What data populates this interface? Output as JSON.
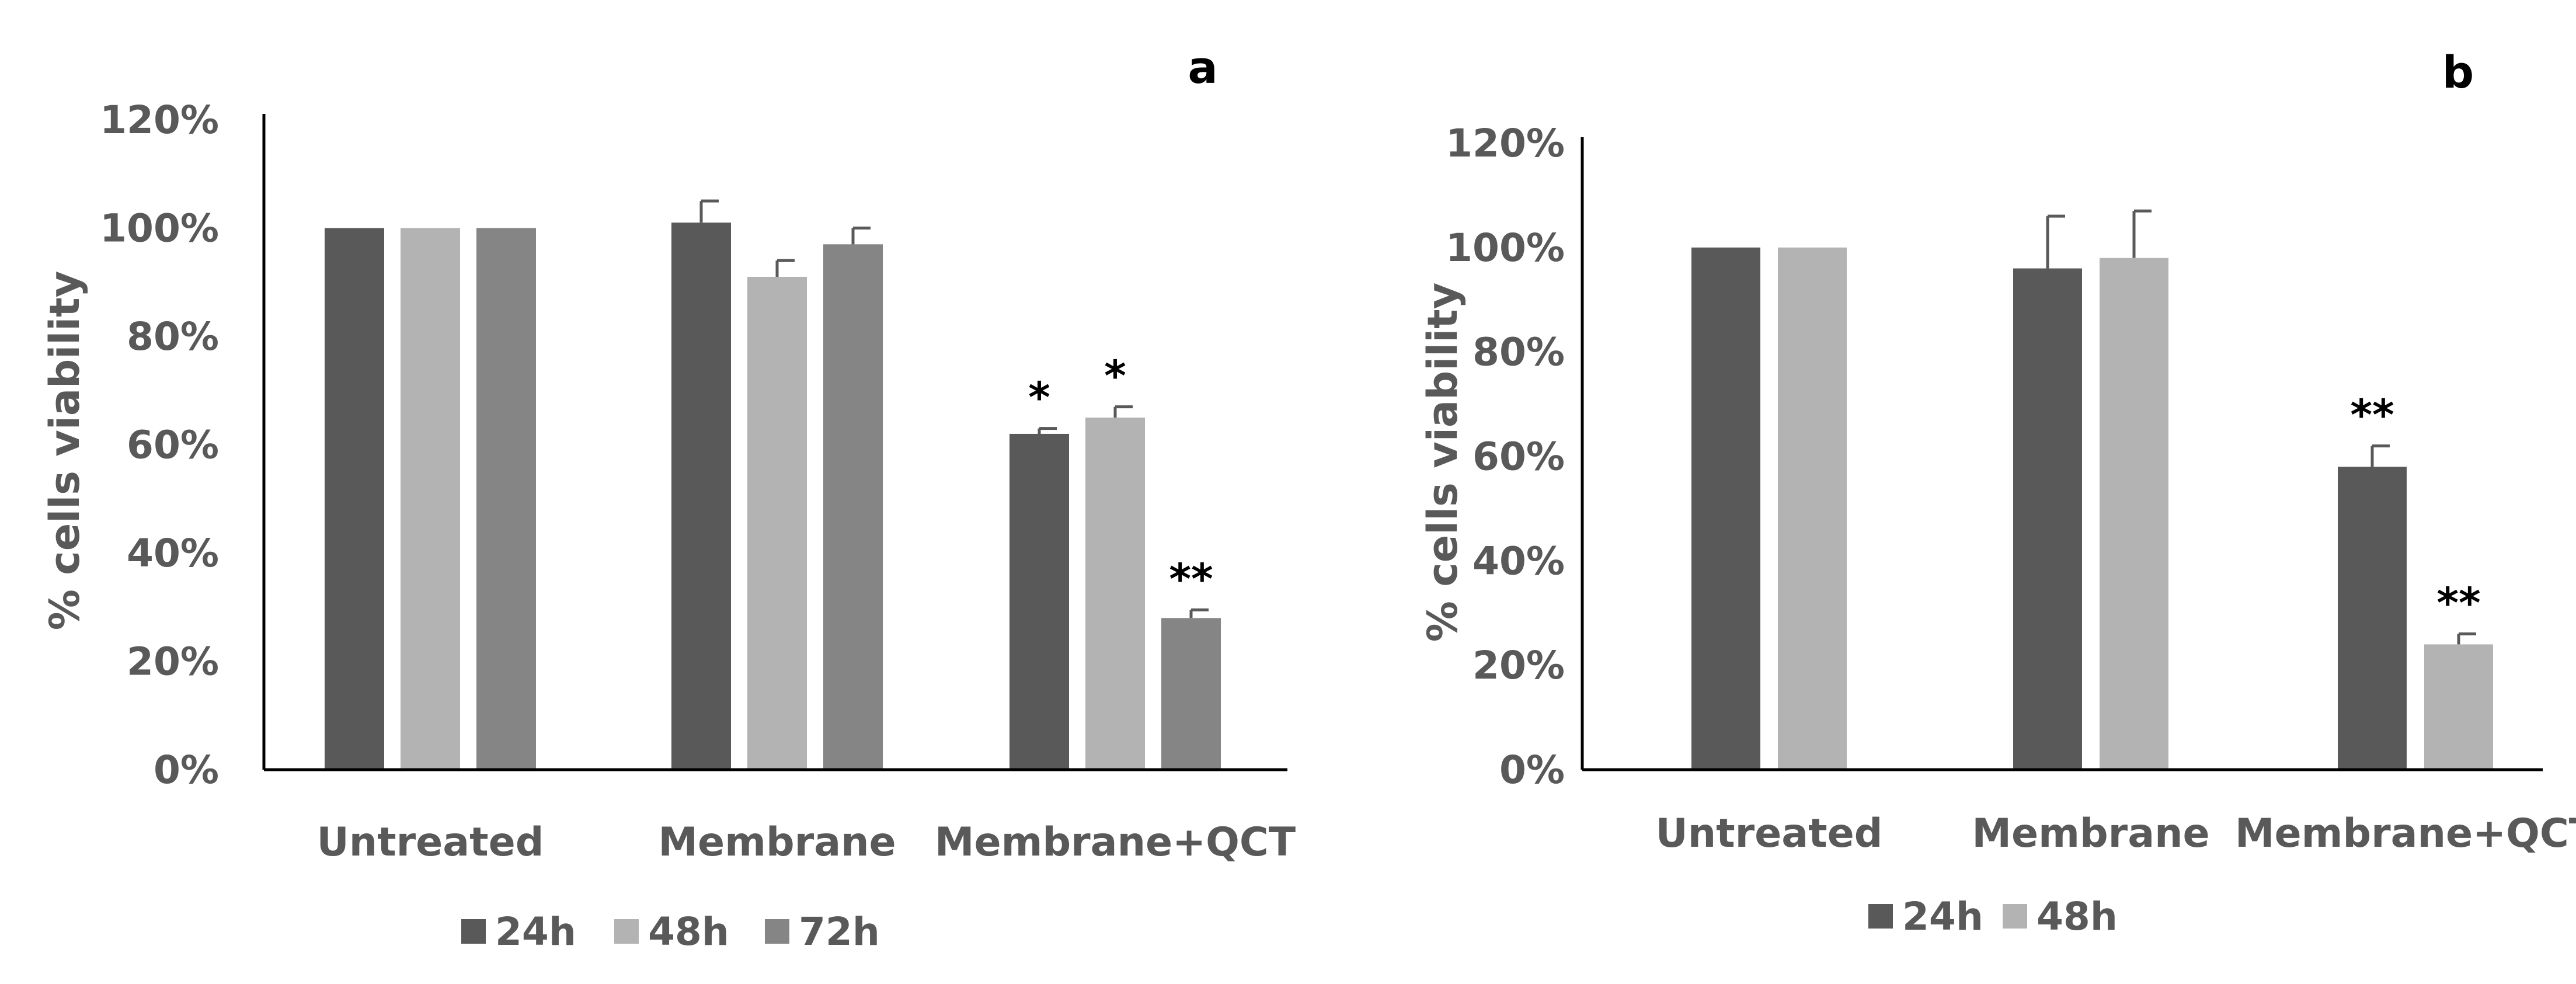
{
  "chart_data": [
    {
      "type": "bar",
      "panel_label": "a",
      "ylabel": "% cells viability",
      "xlabel": "",
      "ylim": [
        0,
        120
      ],
      "y_ticks": [
        "0%",
        "20%",
        "40%",
        "60%",
        "80%",
        "100%",
        "120%"
      ],
      "categories": [
        "Untreated",
        "Membrane",
        "Membrane+QCT"
      ],
      "series": [
        {
          "name": "24h",
          "color": "#595959",
          "values": [
            100,
            101,
            62
          ],
          "errors": [
            0,
            4,
            1
          ],
          "significance": [
            "",
            "",
            "*"
          ]
        },
        {
          "name": "48h",
          "color": "#b3b3b3",
          "values": [
            100,
            91,
            65
          ],
          "errors": [
            0,
            3,
            2
          ],
          "significance": [
            "",
            "",
            "*"
          ]
        },
        {
          "name": "72h",
          "color": "#858585",
          "values": [
            100,
            97,
            28
          ],
          "errors": [
            0,
            3,
            1.5
          ],
          "significance": [
            "",
            "",
            "**"
          ]
        }
      ],
      "legend_position": "bottom"
    },
    {
      "type": "bar",
      "panel_label": "b",
      "ylabel": "% cells viability",
      "xlabel": "",
      "ylim": [
        0,
        120
      ],
      "y_ticks": [
        "0%",
        "20%",
        "40%",
        "60%",
        "80%",
        "100%",
        "120%"
      ],
      "categories": [
        "Untreated",
        "Membrane",
        "Membrane+QCT"
      ],
      "series": [
        {
          "name": "24h",
          "color": "#595959",
          "values": [
            100,
            96,
            58
          ],
          "errors": [
            0,
            10,
            4
          ],
          "significance": [
            "",
            "",
            "**"
          ]
        },
        {
          "name": "48h",
          "color": "#b3b3b3",
          "values": [
            100,
            98,
            24
          ],
          "errors": [
            0,
            9,
            2
          ],
          "significance": [
            "",
            "",
            "**"
          ]
        }
      ],
      "legend_position": "bottom"
    }
  ]
}
